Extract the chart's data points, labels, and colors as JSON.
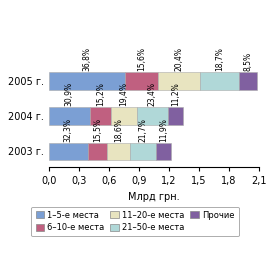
{
  "years": [
    "2003 г.",
    "2004 г.",
    "2005 г."
  ],
  "segments": [
    "1–5-е места",
    "6–10-е места",
    "11–20-е места",
    "21–50-е места",
    "Прочие"
  ],
  "percentages": [
    [
      32.3,
      15.5,
      18.6,
      21.7,
      11.9
    ],
    [
      30.9,
      15.2,
      19.4,
      23.4,
      11.2
    ],
    [
      36.8,
      15.6,
      20.4,
      18.7,
      8.5
    ]
  ],
  "totals": [
    1.22,
    1.34,
    2.08
  ],
  "colors": [
    "#7b9fd4",
    "#c06080",
    "#e8e4c0",
    "#b0d8d8",
    "#8060a0"
  ],
  "xlabel": "Млрд грн.",
  "xlim": [
    0,
    2.1
  ],
  "xticks": [
    0.0,
    0.3,
    0.6,
    0.9,
    1.2,
    1.5,
    1.8,
    2.1
  ],
  "xtick_labels": [
    "0,0",
    "0,3",
    "0,6",
    "0,9",
    "1,2",
    "1,5",
    "1,8",
    "2,1"
  ],
  "bar_height": 0.5,
  "label_fontsize": 5.5,
  "tick_fontsize": 7.0,
  "legend_fontsize": 6.0
}
